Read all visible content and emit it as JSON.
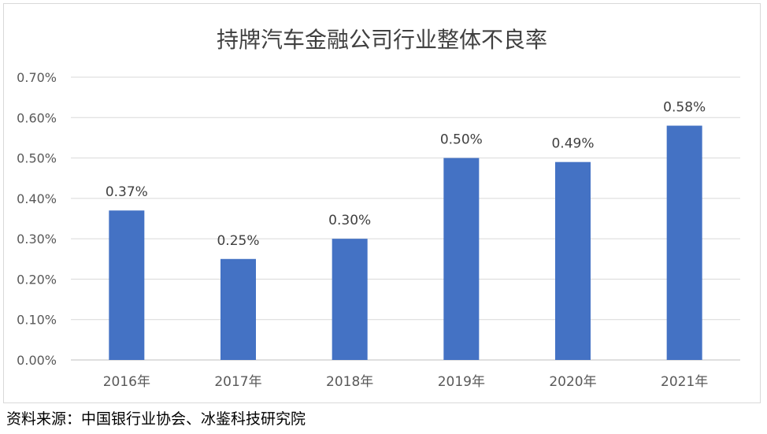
{
  "source": "资料来源：中国银行业协会、冰鉴科技研究院",
  "chart_data": {
    "type": "bar",
    "title": "持牌汽车金融公司行业整体不良率",
    "xlabel": "",
    "ylabel": "",
    "categories": [
      "2016年",
      "2017年",
      "2018年",
      "2019年",
      "2020年",
      "2021年"
    ],
    "values": [
      0.37,
      0.25,
      0.3,
      0.5,
      0.49,
      0.58
    ],
    "value_labels": [
      "0.37%",
      "0.25%",
      "0.30%",
      "0.50%",
      "0.49%",
      "0.58%"
    ],
    "y_ticks": [
      "0.00%",
      "0.10%",
      "0.20%",
      "0.30%",
      "0.40%",
      "0.50%",
      "0.60%",
      "0.70%"
    ],
    "ylim": [
      0,
      0.7
    ],
    "grid": true,
    "legend": "none",
    "bar_color": "#4472c4"
  }
}
